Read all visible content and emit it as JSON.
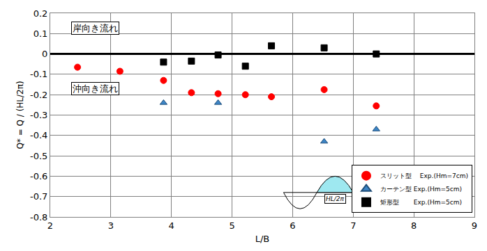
{
  "chart_data": {
    "type": "scatter",
    "x_label": "L/B",
    "y_label": "Q* = Q / (HL/2π)",
    "xlim": [
      2,
      9
    ],
    "xticks": [
      2,
      3,
      4,
      5,
      6,
      7,
      8,
      9
    ],
    "ylim": [
      -0.8,
      0.2
    ],
    "yticks": [
      -0.8,
      -0.7,
      -0.6,
      -0.5,
      -0.4,
      -0.3,
      -0.2,
      -0.1,
      0,
      0.1,
      0.2
    ],
    "grid": true,
    "legend": "bottom right",
    "annotations": [
      "岸向き流れ",
      "沖向き流れ",
      "HL/2π"
    ],
    "series": [
      {
        "name": "スリット型　 Exp.(Hm=7cm)",
        "color": "#ff0000",
        "marker": "circle",
        "x": [
          2.45,
          3.15,
          3.87,
          4.33,
          4.77,
          5.22,
          5.65,
          6.52,
          7.38
        ],
        "values": [
          -0.065,
          -0.085,
          -0.13,
          -0.19,
          -0.195,
          -0.2,
          -0.21,
          -0.175,
          -0.255
        ]
      },
      {
        "name": "カーテン型 Exp.(Hm=5cm)",
        "color": "#3d85c6",
        "marker": "triangle",
        "x": [
          3.87,
          4.77,
          6.52,
          7.38
        ],
        "values": [
          -0.24,
          -0.24,
          -0.43,
          -0.37
        ]
      },
      {
        "name": "矩形型　　 Exp.(Hm=5cm)",
        "color": "#000000",
        "marker": "square",
        "x": [
          3.87,
          4.33,
          4.77,
          5.22,
          5.65,
          6.52,
          7.38
        ],
        "values": [
          -0.04,
          -0.035,
          -0.005,
          -0.06,
          0.04,
          0.03,
          0.0
        ]
      }
    ]
  }
}
